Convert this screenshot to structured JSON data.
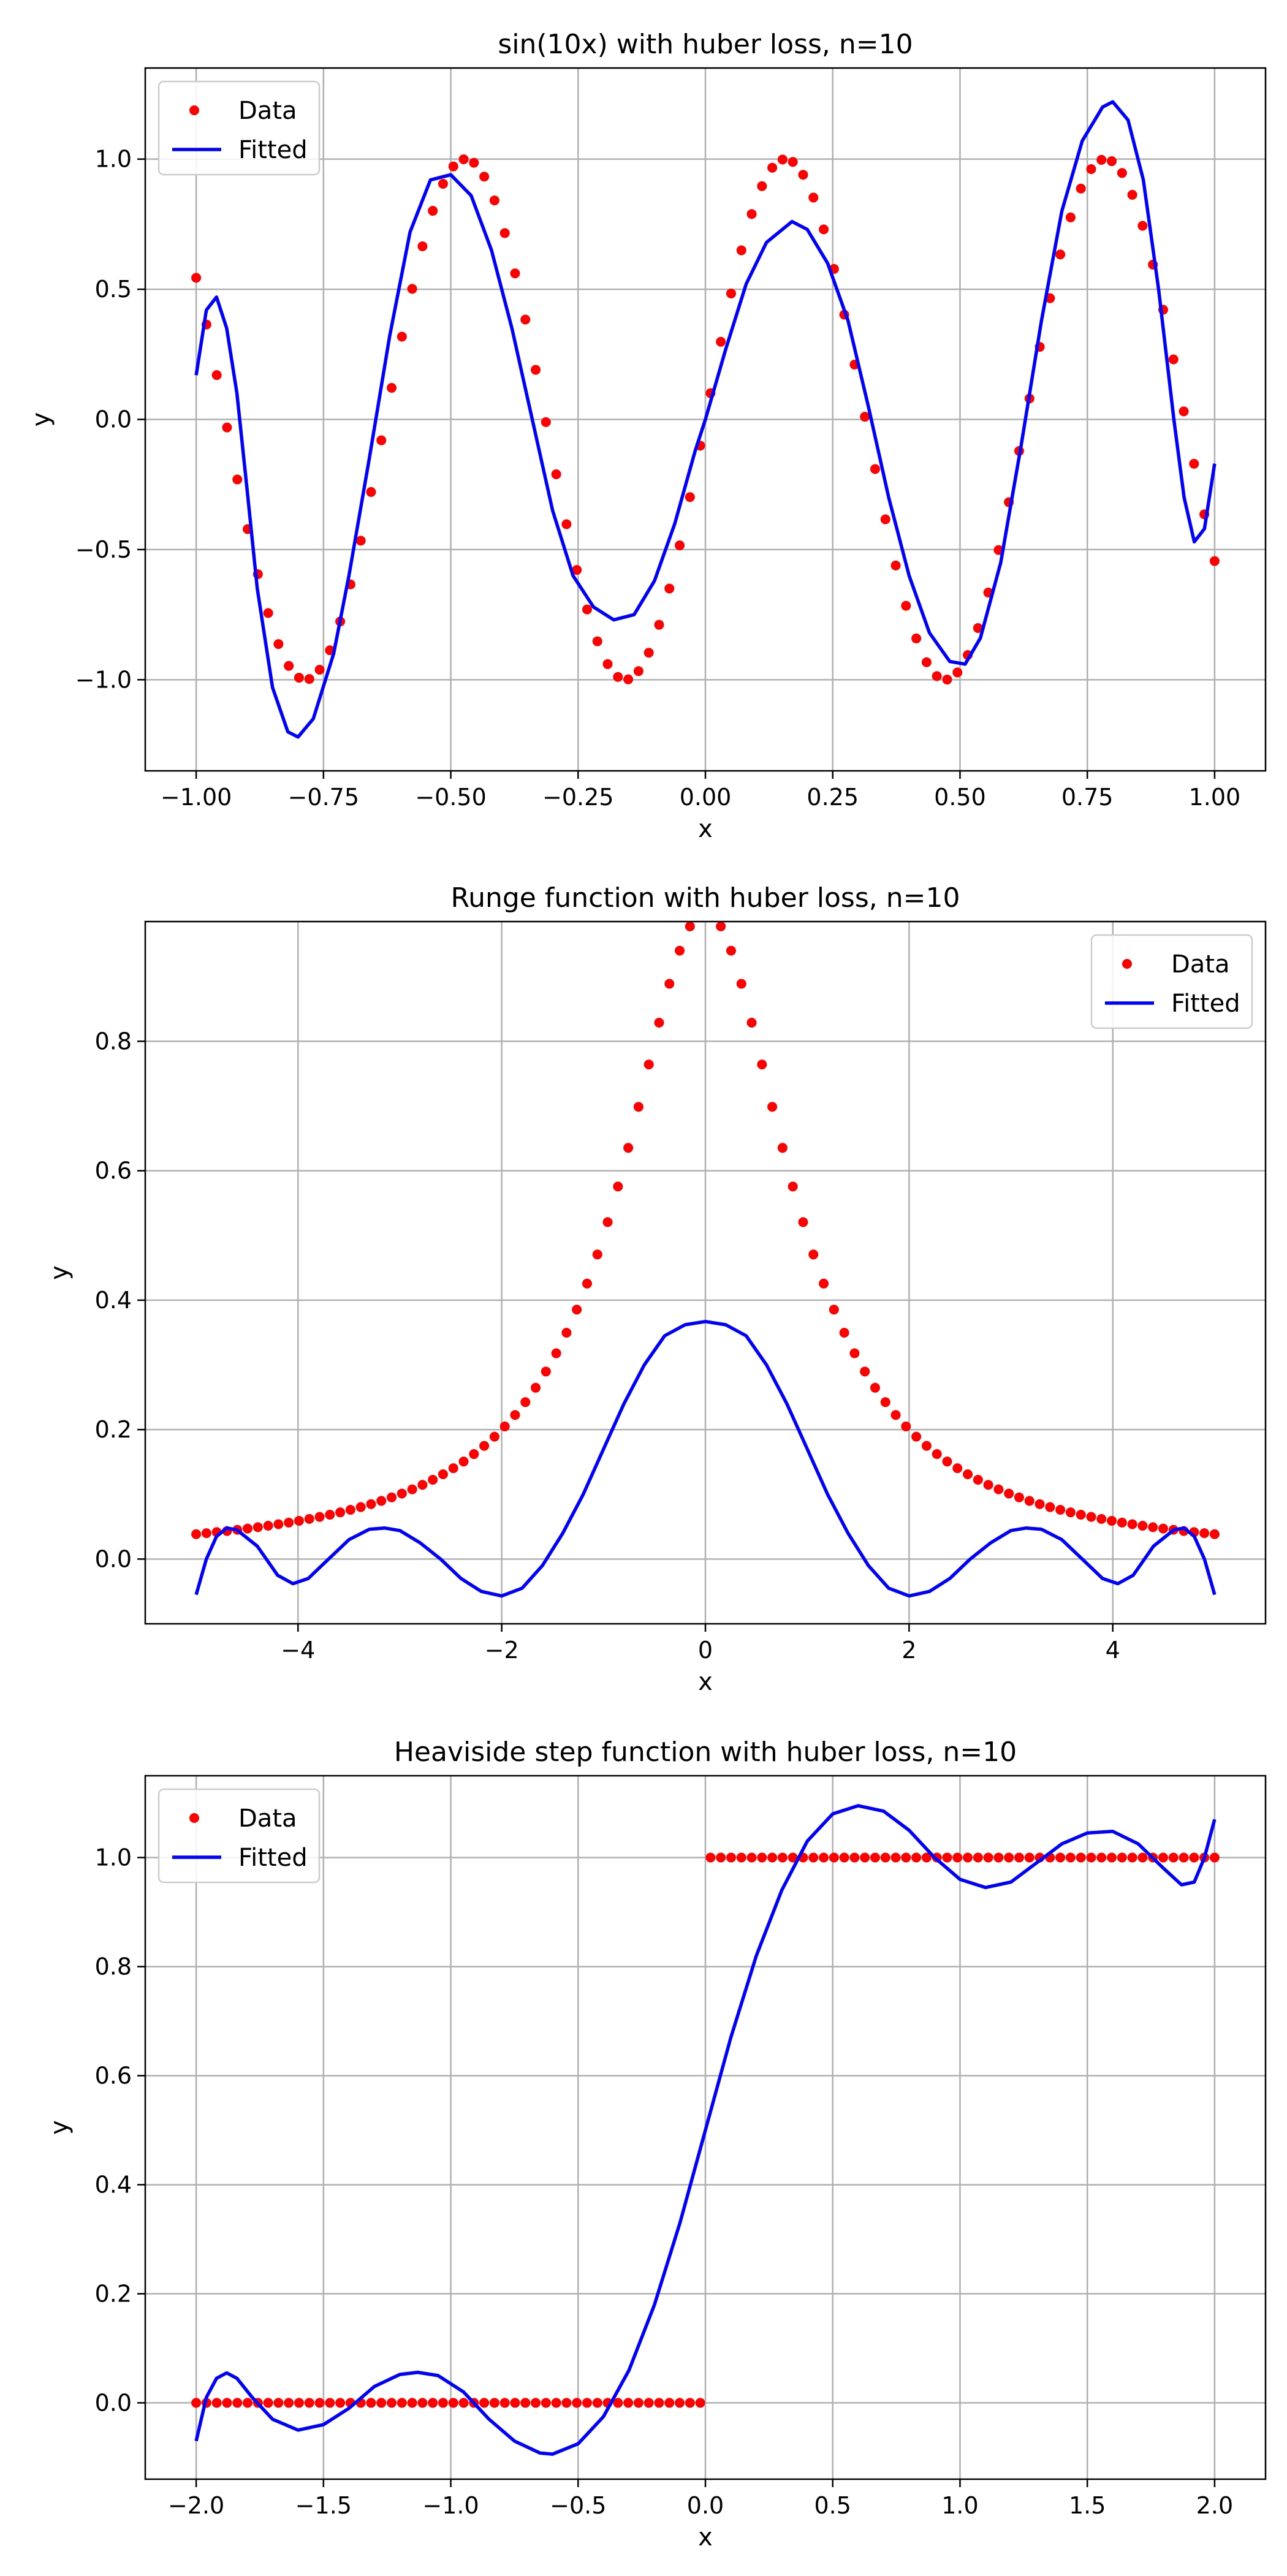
{
  "chart_data": [
    {
      "type": "scatter",
      "title": "sin(10x) with huber loss, n=10",
      "xlabel": "x",
      "ylabel": "y",
      "xlim": [
        -1.1,
        1.1
      ],
      "ylim": [
        -1.35,
        1.35
      ],
      "xticks": [
        -1.0,
        -0.75,
        -0.5,
        -0.25,
        0.0,
        0.25,
        0.5,
        0.75,
        1.0
      ],
      "xtick_labels": [
        "−1.00",
        "−0.75",
        "−0.50",
        "−0.25",
        "0.00",
        "0.25",
        "0.50",
        "0.75",
        "1.00"
      ],
      "yticks": [
        -1.0,
        -0.5,
        0.0,
        0.5,
        1.0
      ],
      "ytick_labels": [
        "−1.0",
        "−0.5",
        "0.0",
        "0.5",
        "1.0"
      ],
      "grid": true,
      "legend": "upper left",
      "data_func": "sin10x",
      "data_domain": [
        -1,
        1
      ],
      "data_count": 100,
      "series": [
        {
          "name": "Data",
          "kind": "scatter",
          "color": "#ff0000"
        },
        {
          "name": "Fitted",
          "kind": "line",
          "color": "#0000ff",
          "points": [
            [
              -1.0,
              0.17
            ],
            [
              -0.98,
              0.42
            ],
            [
              -0.96,
              0.47
            ],
            [
              -0.94,
              0.35
            ],
            [
              -0.92,
              0.1
            ],
            [
              -0.9,
              -0.27
            ],
            [
              -0.88,
              -0.65
            ],
            [
              -0.85,
              -1.03
            ],
            [
              -0.82,
              -1.2
            ],
            [
              -0.8,
              -1.22
            ],
            [
              -0.77,
              -1.15
            ],
            [
              -0.73,
              -0.9
            ],
            [
              -0.7,
              -0.6
            ],
            [
              -0.66,
              -0.15
            ],
            [
              -0.62,
              0.32
            ],
            [
              -0.58,
              0.72
            ],
            [
              -0.54,
              0.92
            ],
            [
              -0.5,
              0.94
            ],
            [
              -0.46,
              0.86
            ],
            [
              -0.42,
              0.65
            ],
            [
              -0.38,
              0.35
            ],
            [
              -0.34,
              0.0
            ],
            [
              -0.3,
              -0.35
            ],
            [
              -0.26,
              -0.6
            ],
            [
              -0.22,
              -0.72
            ],
            [
              -0.18,
              -0.77
            ],
            [
              -0.14,
              -0.75
            ],
            [
              -0.1,
              -0.62
            ],
            [
              -0.06,
              -0.4
            ],
            [
              -0.02,
              -0.12
            ],
            [
              0.0,
              0.0
            ],
            [
              0.04,
              0.27
            ],
            [
              0.08,
              0.52
            ],
            [
              0.12,
              0.68
            ],
            [
              0.17,
              0.76
            ],
            [
              0.2,
              0.73
            ],
            [
              0.24,
              0.6
            ],
            [
              0.28,
              0.38
            ],
            [
              0.32,
              0.05
            ],
            [
              0.36,
              -0.3
            ],
            [
              0.4,
              -0.6
            ],
            [
              0.44,
              -0.82
            ],
            [
              0.48,
              -0.93
            ],
            [
              0.51,
              -0.94
            ],
            [
              0.54,
              -0.84
            ],
            [
              0.58,
              -0.55
            ],
            [
              0.62,
              -0.1
            ],
            [
              0.66,
              0.38
            ],
            [
              0.7,
              0.8
            ],
            [
              0.74,
              1.07
            ],
            [
              0.78,
              1.2
            ],
            [
              0.8,
              1.22
            ],
            [
              0.83,
              1.15
            ],
            [
              0.86,
              0.92
            ],
            [
              0.89,
              0.5
            ],
            [
              0.92,
              0.0
            ],
            [
              0.94,
              -0.3
            ],
            [
              0.96,
              -0.47
            ],
            [
              0.98,
              -0.42
            ],
            [
              1.0,
              -0.17
            ]
          ]
        }
      ]
    },
    {
      "type": "scatter",
      "title": "Runge function with huber loss, n=10",
      "xlabel": "x",
      "ylabel": "y",
      "xlim": [
        -5.5,
        5.5
      ],
      "ylim": [
        -0.1,
        0.985
      ],
      "xticks": [
        -4,
        -2,
        0,
        2,
        4
      ],
      "xtick_labels": [
        "−4",
        "−2",
        "0",
        "2",
        "4"
      ],
      "yticks": [
        0.0,
        0.2,
        0.4,
        0.6,
        0.8
      ],
      "ytick_labels": [
        "0.0",
        "0.2",
        "0.4",
        "0.6",
        "0.8"
      ],
      "grid": true,
      "legend": "upper right",
      "data_func": "runge",
      "data_domain": [
        -5,
        5
      ],
      "data_count": 100,
      "series": [
        {
          "name": "Data",
          "kind": "scatter",
          "color": "#ff0000"
        },
        {
          "name": "Fitted",
          "kind": "line",
          "color": "#0000ff",
          "points": [
            [
              -5.0,
              -0.055
            ],
            [
              -4.9,
              0.0
            ],
            [
              -4.8,
              0.035
            ],
            [
              -4.7,
              0.048
            ],
            [
              -4.6,
              0.045
            ],
            [
              -4.4,
              0.02
            ],
            [
              -4.2,
              -0.025
            ],
            [
              -4.05,
              -0.038
            ],
            [
              -3.9,
              -0.03
            ],
            [
              -3.7,
              0.0
            ],
            [
              -3.5,
              0.03
            ],
            [
              -3.3,
              0.046
            ],
            [
              -3.15,
              0.048
            ],
            [
              -3.0,
              0.044
            ],
            [
              -2.8,
              0.025
            ],
            [
              -2.6,
              0.0
            ],
            [
              -2.4,
              -0.03
            ],
            [
              -2.2,
              -0.05
            ],
            [
              -2.0,
              -0.057
            ],
            [
              -1.8,
              -0.045
            ],
            [
              -1.6,
              -0.01
            ],
            [
              -1.4,
              0.04
            ],
            [
              -1.2,
              0.1
            ],
            [
              -1.0,
              0.17
            ],
            [
              -0.8,
              0.24
            ],
            [
              -0.6,
              0.3
            ],
            [
              -0.4,
              0.345
            ],
            [
              -0.2,
              0.362
            ],
            [
              0.0,
              0.367
            ],
            [
              0.2,
              0.362
            ],
            [
              0.4,
              0.345
            ],
            [
              0.6,
              0.3
            ],
            [
              0.8,
              0.24
            ],
            [
              1.0,
              0.17
            ],
            [
              1.2,
              0.1
            ],
            [
              1.4,
              0.04
            ],
            [
              1.6,
              -0.01
            ],
            [
              1.8,
              -0.045
            ],
            [
              2.0,
              -0.057
            ],
            [
              2.2,
              -0.05
            ],
            [
              2.4,
              -0.03
            ],
            [
              2.6,
              0.0
            ],
            [
              2.8,
              0.025
            ],
            [
              3.0,
              0.044
            ],
            [
              3.15,
              0.048
            ],
            [
              3.3,
              0.046
            ],
            [
              3.5,
              0.03
            ],
            [
              3.7,
              0.0
            ],
            [
              3.9,
              -0.03
            ],
            [
              4.05,
              -0.038
            ],
            [
              4.2,
              -0.025
            ],
            [
              4.4,
              0.02
            ],
            [
              4.6,
              0.045
            ],
            [
              4.7,
              0.048
            ],
            [
              4.8,
              0.035
            ],
            [
              4.9,
              0.0
            ],
            [
              5.0,
              -0.055
            ]
          ]
        }
      ]
    },
    {
      "type": "scatter",
      "title": "Heaviside step function with huber loss, n=10",
      "xlabel": "x",
      "ylabel": "y",
      "xlim": [
        -2.2,
        2.2
      ],
      "ylim": [
        -0.14,
        1.15
      ],
      "xticks": [
        -2.0,
        -1.5,
        -1.0,
        -0.5,
        0.0,
        0.5,
        1.0,
        1.5,
        2.0
      ],
      "xtick_labels": [
        "−2.0",
        "−1.5",
        "−1.0",
        "−0.5",
        "0.0",
        "0.5",
        "1.0",
        "1.5",
        "2.0"
      ],
      "yticks": [
        0.0,
        0.2,
        0.4,
        0.6,
        0.8,
        1.0
      ],
      "ytick_labels": [
        "0.0",
        "0.2",
        "0.4",
        "0.6",
        "0.8",
        "1.0"
      ],
      "grid": true,
      "legend": "upper left",
      "data_func": "heaviside",
      "data_domain": [
        -2,
        2
      ],
      "data_count": 100,
      "series": [
        {
          "name": "Data",
          "kind": "scatter",
          "color": "#ff0000"
        },
        {
          "name": "Fitted",
          "kind": "line",
          "color": "#0000ff",
          "points": [
            [
              -2.0,
              -0.07
            ],
            [
              -1.96,
              0.01
            ],
            [
              -1.92,
              0.045
            ],
            [
              -1.88,
              0.055
            ],
            [
              -1.84,
              0.045
            ],
            [
              -1.78,
              0.01
            ],
            [
              -1.7,
              -0.03
            ],
            [
              -1.6,
              -0.05
            ],
            [
              -1.5,
              -0.04
            ],
            [
              -1.4,
              -0.01
            ],
            [
              -1.3,
              0.03
            ],
            [
              -1.2,
              0.052
            ],
            [
              -1.13,
              0.056
            ],
            [
              -1.05,
              0.05
            ],
            [
              -0.95,
              0.02
            ],
            [
              -0.85,
              -0.03
            ],
            [
              -0.75,
              -0.07
            ],
            [
              -0.65,
              -0.092
            ],
            [
              -0.6,
              -0.094
            ],
            [
              -0.5,
              -0.075
            ],
            [
              -0.4,
              -0.025
            ],
            [
              -0.3,
              0.06
            ],
            [
              -0.2,
              0.18
            ],
            [
              -0.1,
              0.33
            ],
            [
              0.0,
              0.5
            ],
            [
              0.1,
              0.67
            ],
            [
              0.2,
              0.82
            ],
            [
              0.3,
              0.94
            ],
            [
              0.4,
              1.03
            ],
            [
              0.5,
              1.08
            ],
            [
              0.6,
              1.095
            ],
            [
              0.7,
              1.085
            ],
            [
              0.8,
              1.05
            ],
            [
              0.9,
              1.0
            ],
            [
              1.0,
              0.96
            ],
            [
              1.1,
              0.945
            ],
            [
              1.2,
              0.955
            ],
            [
              1.3,
              0.99
            ],
            [
              1.4,
              1.025
            ],
            [
              1.5,
              1.045
            ],
            [
              1.6,
              1.048
            ],
            [
              1.7,
              1.025
            ],
            [
              1.8,
              0.98
            ],
            [
              1.87,
              0.95
            ],
            [
              1.92,
              0.955
            ],
            [
              1.96,
              1.0
            ],
            [
              2.0,
              1.07
            ]
          ]
        }
      ]
    }
  ]
}
